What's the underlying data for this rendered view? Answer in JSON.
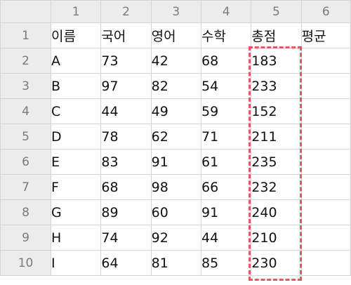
{
  "columns": [
    "1",
    "2",
    "3",
    "4",
    "5",
    "6"
  ],
  "rows": [
    {
      "num": "1",
      "cells": [
        "이름",
        "국어",
        "영어",
        "수학",
        "총점",
        "평균"
      ]
    },
    {
      "num": "2",
      "cells": [
        "A",
        "73",
        "42",
        "68",
        "183",
        ""
      ]
    },
    {
      "num": "3",
      "cells": [
        "B",
        "97",
        "82",
        "54",
        "233",
        ""
      ]
    },
    {
      "num": "4",
      "cells": [
        "C",
        "44",
        "49",
        "59",
        "152",
        ""
      ]
    },
    {
      "num": "5",
      "cells": [
        "D",
        "78",
        "62",
        "71",
        "211",
        ""
      ]
    },
    {
      "num": "6",
      "cells": [
        "E",
        "83",
        "91",
        "61",
        "235",
        ""
      ]
    },
    {
      "num": "7",
      "cells": [
        "F",
        "68",
        "98",
        "66",
        "232",
        ""
      ]
    },
    {
      "num": "8",
      "cells": [
        "G",
        "89",
        "60",
        "91",
        "240",
        ""
      ]
    },
    {
      "num": "9",
      "cells": [
        "H",
        "74",
        "92",
        "44",
        "210",
        ""
      ]
    },
    {
      "num": "10",
      "cells": [
        "I",
        "64",
        "81",
        "85",
        "230",
        ""
      ]
    }
  ],
  "highlight": {
    "color": "#e05863",
    "column": "5",
    "rows": [
      "2",
      "10"
    ]
  }
}
